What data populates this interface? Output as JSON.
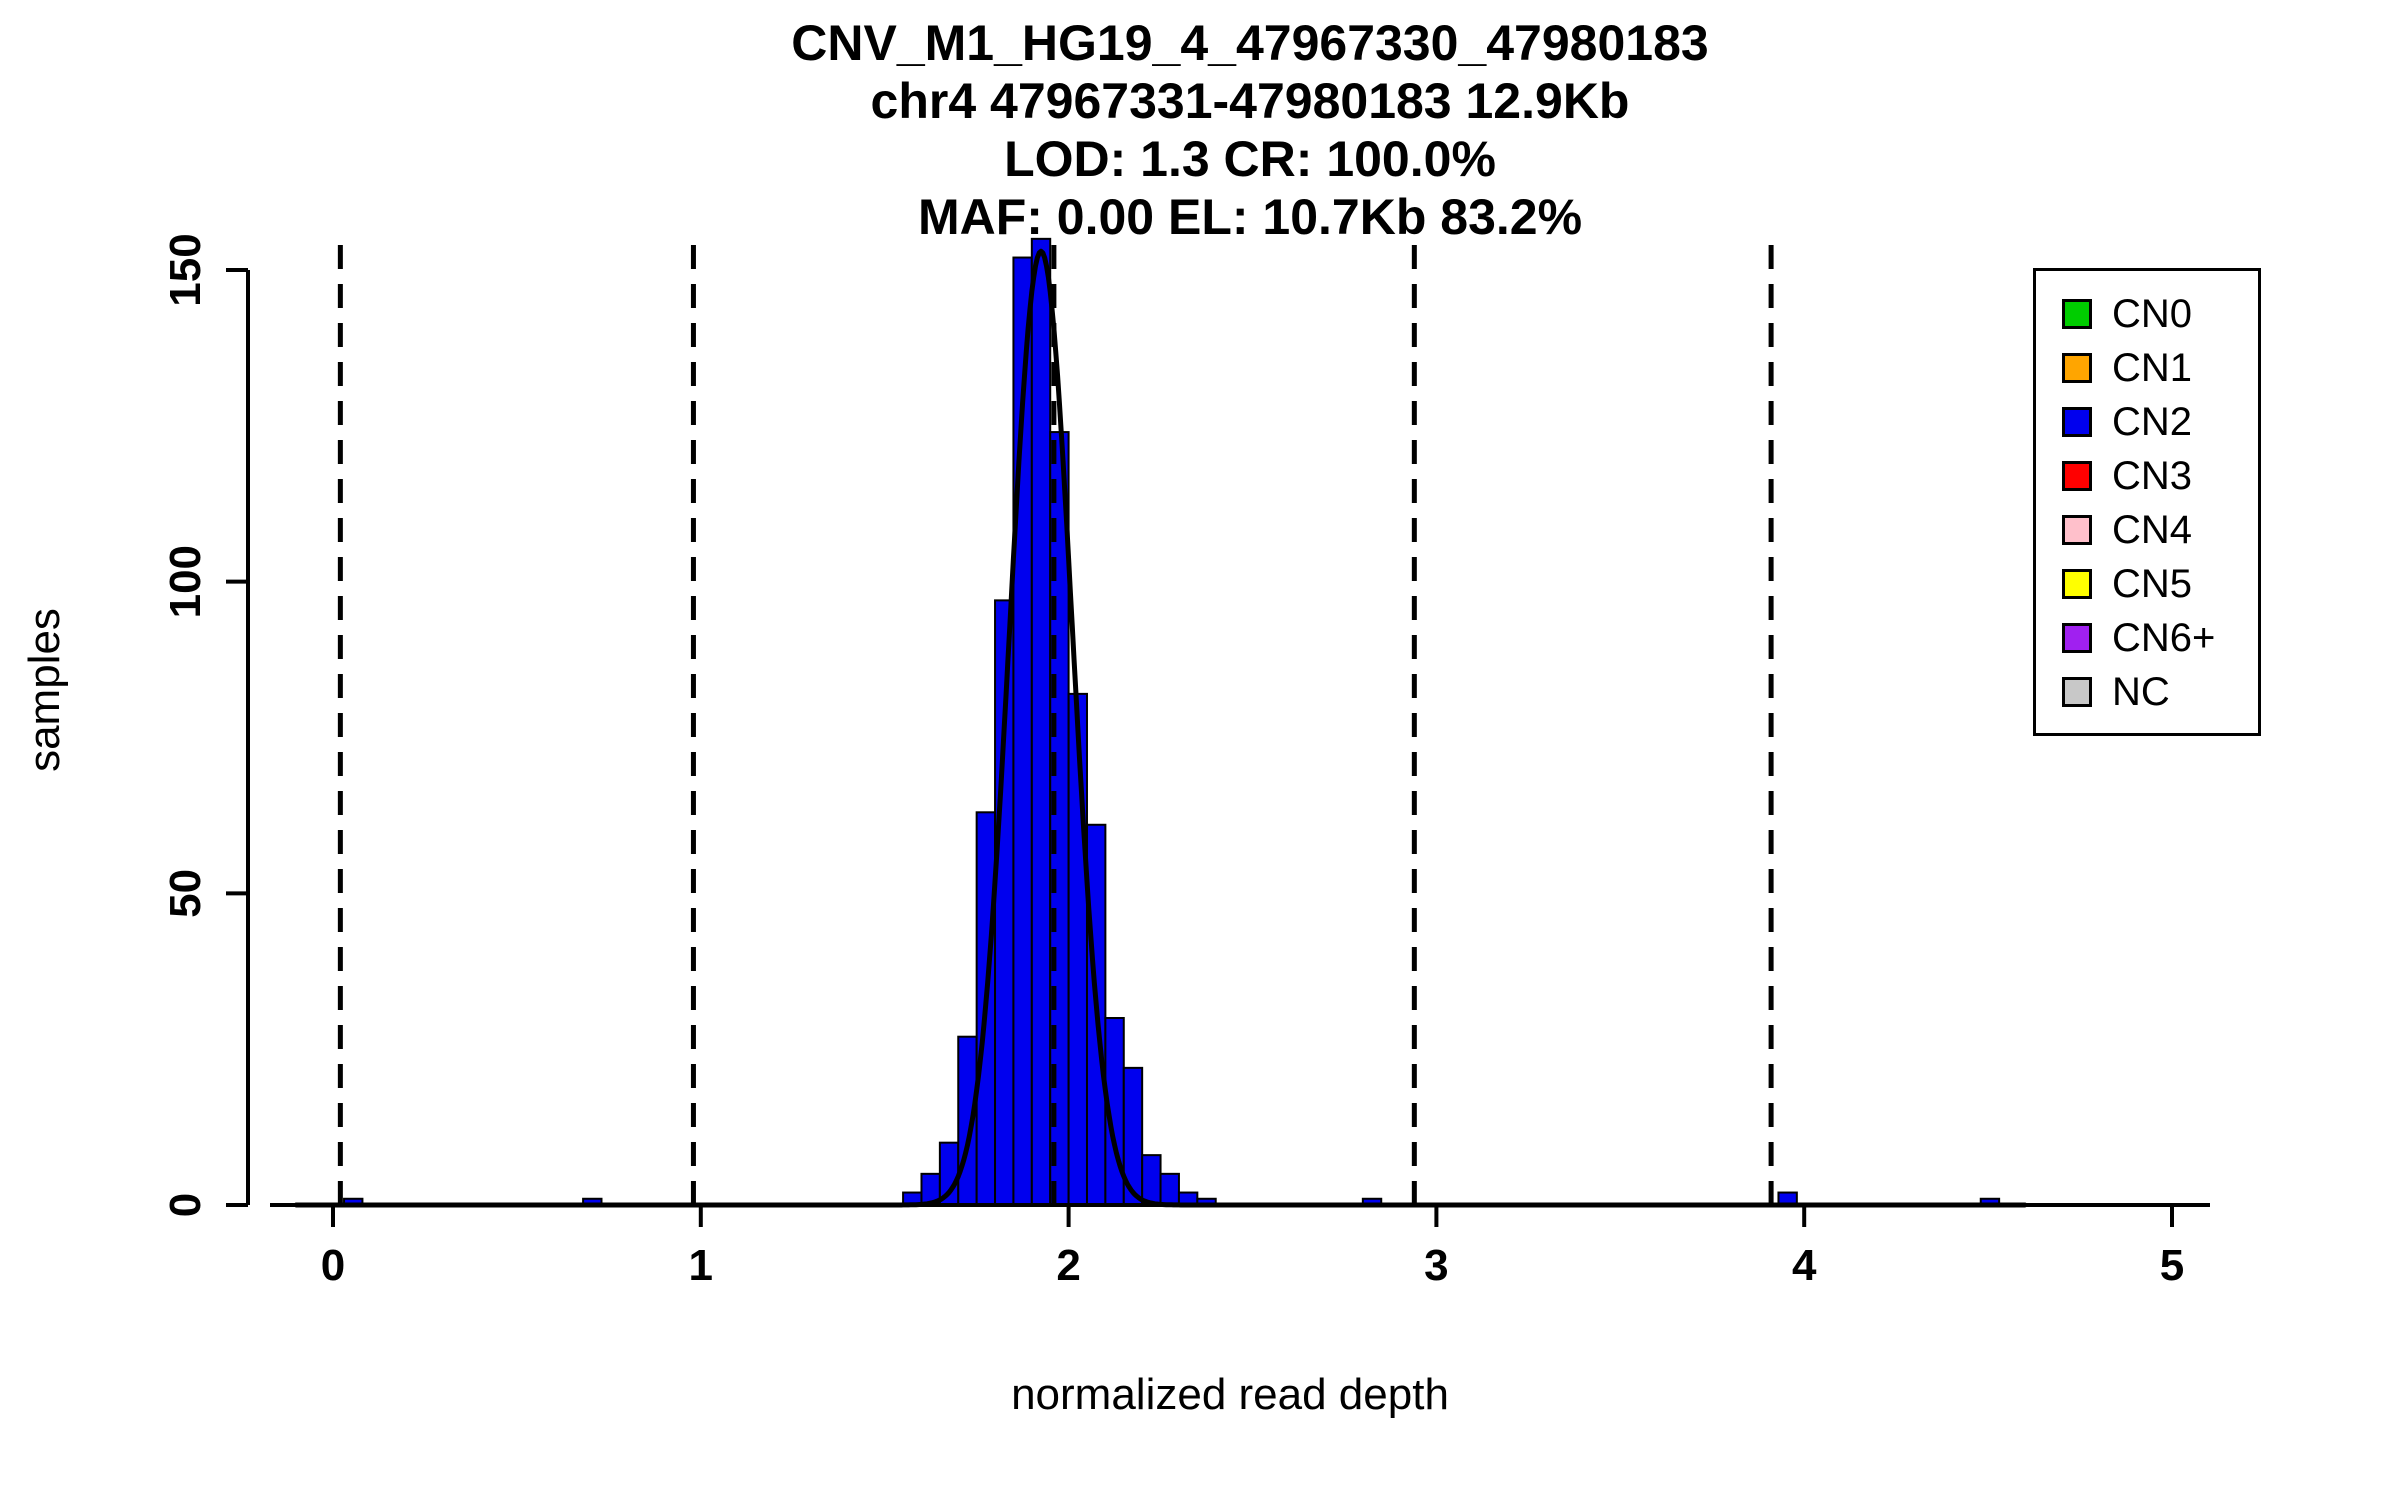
{
  "chart_data": {
    "type": "histogram",
    "title_lines": [
      "CNV_M1_HG19_4_47967330_47980183",
      "chr4 47967331-47980183 12.9Kb",
      "LOD: 1.3 CR: 100.0%",
      "MAF: 0.00 EL: 10.7Kb 83.2%"
    ],
    "xlabel": "normalized read depth",
    "ylabel": "samples",
    "xlim": [
      -0.2,
      5.2
    ],
    "ylim": [
      0,
      155
    ],
    "x_ticks": [
      0,
      1,
      2,
      3,
      4,
      5
    ],
    "y_ticks": [
      0,
      50,
      100,
      150
    ],
    "bin_width": 0.05,
    "bars": [
      {
        "x": 1.55,
        "h": 2
      },
      {
        "x": 1.6,
        "h": 5
      },
      {
        "x": 1.65,
        "h": 10
      },
      {
        "x": 1.7,
        "h": 27
      },
      {
        "x": 1.75,
        "h": 63
      },
      {
        "x": 1.8,
        "h": 97
      },
      {
        "x": 1.85,
        "h": 152
      },
      {
        "x": 1.9,
        "h": 155
      },
      {
        "x": 1.95,
        "h": 124
      },
      {
        "x": 2.0,
        "h": 82
      },
      {
        "x": 2.05,
        "h": 61
      },
      {
        "x": 2.1,
        "h": 30
      },
      {
        "x": 2.15,
        "h": 22
      },
      {
        "x": 2.2,
        "h": 8
      },
      {
        "x": 2.25,
        "h": 5
      },
      {
        "x": 2.3,
        "h": 2
      },
      {
        "x": 2.35,
        "h": 1
      }
    ],
    "extra_bars": [
      {
        "x": 0.03,
        "h": 1
      },
      {
        "x": 0.68,
        "h": 1
      },
      {
        "x": 2.8,
        "h": 1
      },
      {
        "x": 3.93,
        "h": 2
      },
      {
        "x": 4.48,
        "h": 1
      }
    ],
    "fit_curve": {
      "mean": 1.925,
      "sd": 0.085,
      "amplitude": 153,
      "x_range": [
        -0.1,
        4.6
      ]
    },
    "dashed_lines_x": [
      0.02,
      0.98,
      1.96,
      2.94,
      3.91
    ],
    "colors": {
      "bar_fill": "#0000EE",
      "bar_stroke": "#000000",
      "curve": "#000000",
      "dashed": "#000000",
      "axis": "#000000"
    },
    "legend": {
      "items": [
        {
          "label": "CN0",
          "color": "#00CD00"
        },
        {
          "label": "CN1",
          "color": "#FFA500"
        },
        {
          "label": "CN2",
          "color": "#0000EE"
        },
        {
          "label": "CN3",
          "color": "#FF0000"
        },
        {
          "label": "CN4",
          "color": "#FFC0CB"
        },
        {
          "label": "CN5",
          "color": "#FFFF00"
        },
        {
          "label": "CN6+",
          "color": "#A020F0"
        },
        {
          "label": "NC",
          "color": "#C8C8C8"
        }
      ]
    }
  }
}
